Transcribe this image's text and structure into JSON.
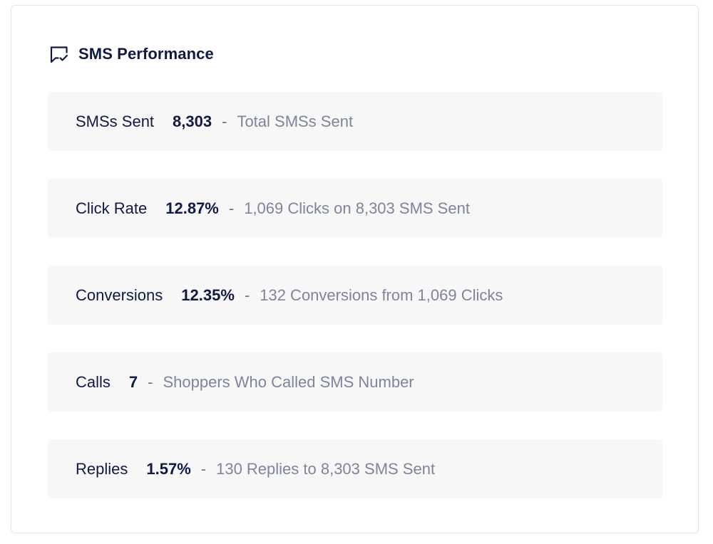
{
  "card": {
    "title": "SMS Performance",
    "icon": "message-check-icon",
    "colors": {
      "title": "#0f1a44",
      "row_background": "#f7f7f8",
      "description": "#7d849c"
    }
  },
  "metrics": [
    {
      "label": "SMSs Sent",
      "value": "8,303",
      "separator": "-",
      "description": "Total SMSs Sent"
    },
    {
      "label": "Click Rate",
      "value": "12.87%",
      "separator": "-",
      "description": "1,069 Clicks on 8,303 SMS Sent"
    },
    {
      "label": "Conversions",
      "value": "12.35%",
      "separator": "-",
      "description": "132 Conversions from 1,069 Clicks"
    },
    {
      "label": "Calls",
      "value": "7",
      "separator": "-",
      "description": "Shoppers Who Called SMS Number"
    },
    {
      "label": "Replies",
      "value": "1.57%",
      "separator": "-",
      "description": "130 Replies to 8,303 SMS Sent"
    }
  ]
}
